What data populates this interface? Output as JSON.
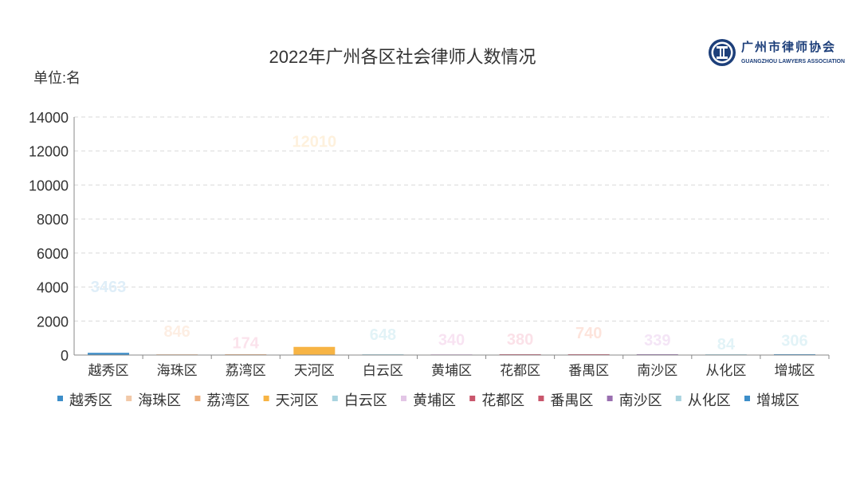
{
  "logo": {
    "name_cn": "广州市律师协会",
    "name_en": "GUANGZHOU LAWYERS ASSOCIATION"
  },
  "chart_data": {
    "type": "bar",
    "title": "2022年广州各区社会律师人数情况",
    "unit_label": "单位:名",
    "categories": [
      "越秀区",
      "海珠区",
      "荔湾区",
      "天河区",
      "白云区",
      "黄埔区",
      "花都区",
      "番禺区",
      "南沙区",
      "从化区",
      "增城区"
    ],
    "values": [
      3463,
      846,
      174,
      12010,
      648,
      340,
      380,
      740,
      339,
      84,
      306
    ],
    "drawn_values": [
      130,
      20,
      10,
      480,
      25,
      12,
      14,
      30,
      12,
      4,
      12
    ],
    "colors": [
      "#3d8ec9",
      "#f2c9a8",
      "#eeb07f",
      "#f7b444",
      "#a9d4df",
      "#e3c6e6",
      "#c9566c",
      "#c9566c",
      "#9a6fb0",
      "#a9d4df",
      "#3d8ec9"
    ],
    "label_colors": [
      "#dfeef8",
      "#fdeee3",
      "#fbe3ec",
      "#fef1dd",
      "#e2f3f7",
      "#f8e3f2",
      "#fbe1e8",
      "#fde4dc",
      "#f4e5f6",
      "#e2f3f7",
      "#e2f3f7"
    ],
    "ylim": [
      0,
      14000
    ],
    "yticks": [
      0,
      2000,
      4000,
      6000,
      8000,
      10000,
      12000,
      14000
    ],
    "grid": true,
    "legend_position": "bottom"
  }
}
